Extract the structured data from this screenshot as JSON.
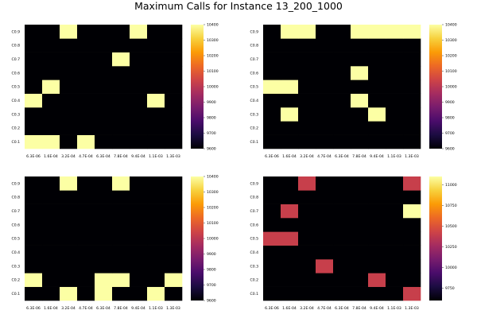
{
  "title": "Maximum Calls for Instance 13_200_1000",
  "colormap": [
    "#000004",
    "#1b0c41",
    "#4a0c6b",
    "#781c6d",
    "#a52c60",
    "#cf4446",
    "#ed6925",
    "#fb9b06",
    "#f7d13d",
    "#fcffa4"
  ],
  "chart_data": [
    {
      "type": "heatmap",
      "x_ticks": [
        "6.3E-06",
        "1.6E-04",
        "3.2E-04",
        "4.7E-04",
        "6.3E-04",
        "7.8E-04",
        "9.4E-04",
        "1.1E-03",
        "1.3E-03"
      ],
      "y_ticks": [
        "C0.1",
        "C0.2",
        "C0.3",
        "C0.4",
        "C0.5",
        "C0.6",
        "C0.7",
        "C0.8",
        "C0.9"
      ],
      "clim": [
        9600,
        10400
      ],
      "colorbar_ticks": [
        9600,
        9700,
        9800,
        9900,
        10000,
        10100,
        10200,
        10300,
        10400
      ],
      "values": [
        [
          10400,
          10400,
          9600,
          10400,
          9600,
          9600,
          9600,
          9600,
          9600
        ],
        [
          9600,
          9600,
          9600,
          9600,
          9600,
          9600,
          9600,
          9600,
          9600
        ],
        [
          9600,
          9600,
          9600,
          9600,
          9600,
          9600,
          9600,
          9600,
          9600
        ],
        [
          10400,
          9600,
          9600,
          9600,
          9600,
          9600,
          9600,
          10400,
          9600
        ],
        [
          9600,
          10400,
          9600,
          9600,
          9600,
          9600,
          9600,
          9600,
          9600
        ],
        [
          9600,
          9600,
          9600,
          9600,
          9600,
          9600,
          9600,
          9600,
          9600
        ],
        [
          9600,
          9600,
          9600,
          9600,
          9600,
          10400,
          9600,
          9600,
          9600
        ],
        [
          9600,
          9600,
          9600,
          9600,
          9600,
          9600,
          9600,
          9600,
          9600
        ],
        [
          9600,
          9600,
          10400,
          9600,
          9600,
          9600,
          10400,
          9600,
          9600
        ]
      ]
    },
    {
      "type": "heatmap",
      "x_ticks": [
        "6.3E-06",
        "1.6E-04",
        "3.2E-04",
        "4.7E-04",
        "6.3E-04",
        "7.8E-04",
        "9.4E-04",
        "1.1E-03",
        "1.3E-03"
      ],
      "y_ticks": [
        "C0.1",
        "C0.2",
        "C0.3",
        "C0.4",
        "C0.5",
        "C0.6",
        "C0.7",
        "C0.8",
        "C0.9"
      ],
      "clim": [
        9600,
        10400
      ],
      "colorbar_ticks": [
        9600,
        9700,
        9800,
        9900,
        10000,
        10100,
        10200,
        10300,
        10400
      ],
      "values": [
        [
          9600,
          9600,
          9600,
          9600,
          9600,
          9600,
          9600,
          9600,
          9600
        ],
        [
          9600,
          9600,
          9600,
          9600,
          9600,
          9600,
          9600,
          9600,
          9600
        ],
        [
          9600,
          10400,
          9600,
          9600,
          9600,
          9600,
          10400,
          9600,
          9600
        ],
        [
          9600,
          9600,
          9600,
          9600,
          9600,
          10400,
          9600,
          9600,
          9600
        ],
        [
          10400,
          10400,
          9600,
          9600,
          9600,
          9600,
          9600,
          9600,
          9600
        ],
        [
          9600,
          9600,
          9600,
          9600,
          9600,
          10400,
          9600,
          9600,
          9600
        ],
        [
          9600,
          9600,
          9600,
          9600,
          9600,
          9600,
          9600,
          9600,
          9600
        ],
        [
          9600,
          9600,
          9600,
          9600,
          9600,
          9600,
          9600,
          9600,
          9600
        ],
        [
          9600,
          10400,
          10400,
          9600,
          9600,
          10400,
          10400,
          10400,
          10400
        ]
      ]
    },
    {
      "type": "heatmap",
      "x_ticks": [
        "6.3E-06",
        "1.6E-04",
        "3.2E-04",
        "4.7E-04",
        "6.3E-04",
        "7.8E-04",
        "9.4E-04",
        "1.1E-03",
        "1.3E-03"
      ],
      "y_ticks": [
        "C0.1",
        "C0.2",
        "C0.3",
        "C0.4",
        "C0.5",
        "C0.6",
        "C0.7",
        "C0.8",
        "C0.9"
      ],
      "clim": [
        9600,
        10400
      ],
      "colorbar_ticks": [
        9600,
        9700,
        9800,
        9900,
        10000,
        10100,
        10200,
        10300,
        10400
      ],
      "values": [
        [
          9600,
          9600,
          10400,
          9600,
          10400,
          9600,
          9600,
          10400,
          9600
        ],
        [
          10400,
          9600,
          9600,
          9600,
          10400,
          10400,
          9600,
          9600,
          10400
        ],
        [
          9600,
          9600,
          9600,
          9600,
          9600,
          9600,
          9600,
          9600,
          9600
        ],
        [
          9600,
          9600,
          9600,
          9600,
          9600,
          9600,
          9600,
          9600,
          9600
        ],
        [
          9600,
          9600,
          9600,
          9600,
          9600,
          9600,
          9600,
          9600,
          9600
        ],
        [
          9600,
          9600,
          9600,
          9600,
          9600,
          9600,
          9600,
          9600,
          9600
        ],
        [
          9600,
          9600,
          9600,
          9600,
          9600,
          9600,
          9600,
          9600,
          9600
        ],
        [
          9600,
          9600,
          9600,
          9600,
          9600,
          9600,
          9600,
          9600,
          9600
        ],
        [
          9600,
          9600,
          10400,
          9600,
          9600,
          10400,
          9600,
          9600,
          9600
        ]
      ]
    },
    {
      "type": "heatmap",
      "x_ticks": [
        "6.3E-06",
        "1.6E-04",
        "3.2E-04",
        "4.7E-04",
        "6.3E-04",
        "7.8E-04",
        "9.4E-04",
        "1.1E-03",
        "1.3E-03"
      ],
      "y_ticks": [
        "C0.1",
        "C0.2",
        "C0.3",
        "C0.4",
        "C0.5",
        "C0.6",
        "C0.7",
        "C0.8",
        "C0.9"
      ],
      "clim": [
        9600,
        11100
      ],
      "colorbar_ticks": [
        9750,
        10000,
        10250,
        10500,
        10750,
        11000
      ],
      "values": [
        [
          9600,
          9600,
          9600,
          9600,
          9600,
          9600,
          9600,
          9600,
          10400
        ],
        [
          9600,
          9600,
          9600,
          9600,
          9600,
          9600,
          10400,
          9600,
          9600
        ],
        [
          9600,
          9600,
          9600,
          10400,
          9600,
          9600,
          9600,
          9600,
          9600
        ],
        [
          9600,
          9600,
          9600,
          9600,
          9600,
          9600,
          9600,
          9600,
          9600
        ],
        [
          10400,
          10400,
          9600,
          9600,
          9600,
          9600,
          9600,
          9600,
          9600
        ],
        [
          9600,
          9600,
          9600,
          9600,
          9600,
          9600,
          9600,
          9600,
          9600
        ],
        [
          9600,
          10400,
          9600,
          9600,
          9600,
          9600,
          9600,
          9600,
          11100
        ],
        [
          9600,
          9600,
          9600,
          9600,
          9600,
          9600,
          9600,
          9600,
          9600
        ],
        [
          9600,
          9600,
          10400,
          9600,
          9600,
          9600,
          9600,
          9600,
          10400
        ]
      ]
    }
  ]
}
